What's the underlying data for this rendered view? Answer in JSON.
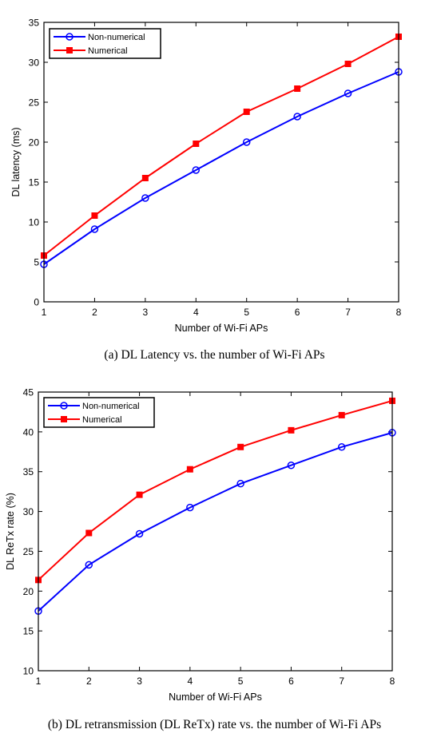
{
  "chart_data": [
    {
      "type": "line",
      "caption": "(a) DL Latency vs. the number of Wi-Fi APs",
      "xlabel": "Number of Wi-Fi APs",
      "ylabel": "DL latency (ms)",
      "x": [
        1,
        2,
        3,
        4,
        5,
        6,
        7,
        8
      ],
      "xlim": [
        1,
        8
      ],
      "ylim": [
        0,
        35
      ],
      "xticks": [
        1,
        2,
        3,
        4,
        5,
        6,
        7,
        8
      ],
      "yticks": [
        0,
        5,
        10,
        15,
        20,
        25,
        30,
        35
      ],
      "grid": false,
      "legend_position": "top-left",
      "series": [
        {
          "name": "Non-numerical",
          "color": "#0000ff",
          "marker": "circle",
          "values": [
            4.7,
            9.1,
            13.0,
            16.5,
            20.0,
            23.2,
            26.1,
            28.8
          ]
        },
        {
          "name": "Numerical",
          "color": "#ff0000",
          "marker": "square",
          "values": [
            5.8,
            10.8,
            15.5,
            19.8,
            23.8,
            26.7,
            29.8,
            33.2
          ]
        }
      ]
    },
    {
      "type": "line",
      "caption": "(b) DL retransmission (DL ReTx) rate vs. the number of Wi-Fi APs",
      "xlabel": "Number of Wi-Fi APs",
      "ylabel": "DL ReTx rate (%)",
      "x": [
        1,
        2,
        3,
        4,
        5,
        6,
        7,
        8
      ],
      "xlim": [
        1,
        8
      ],
      "ylim": [
        10,
        45
      ],
      "xticks": [
        1,
        2,
        3,
        4,
        5,
        6,
        7,
        8
      ],
      "yticks": [
        10,
        15,
        20,
        25,
        30,
        35,
        40,
        45
      ],
      "grid": false,
      "legend_position": "top-left",
      "series": [
        {
          "name": "Non-numerical",
          "color": "#0000ff",
          "marker": "circle",
          "values": [
            17.5,
            23.3,
            27.2,
            30.5,
            33.5,
            35.8,
            38.1,
            39.9
          ]
        },
        {
          "name": "Numerical",
          "color": "#ff0000",
          "marker": "square",
          "values": [
            21.4,
            27.3,
            32.1,
            35.3,
            38.1,
            40.2,
            42.1,
            43.9
          ]
        }
      ]
    }
  ]
}
